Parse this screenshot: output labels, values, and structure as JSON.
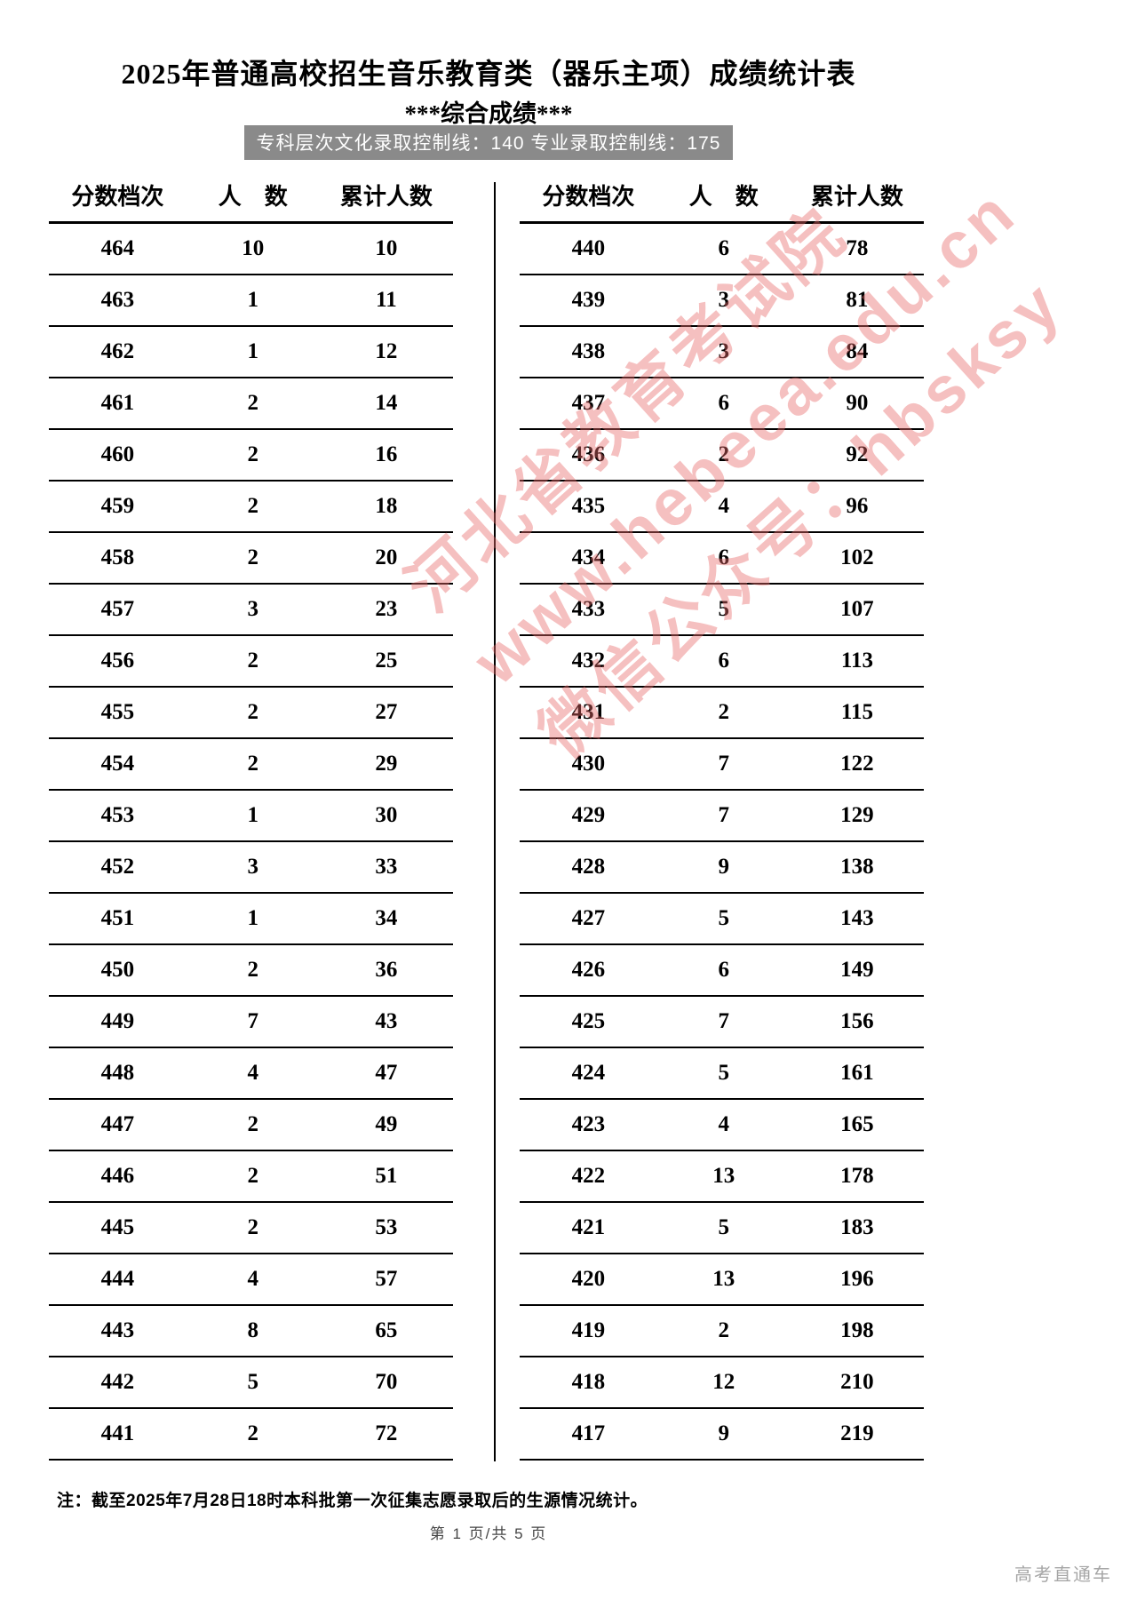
{
  "title": "2025年普通高校招生音乐教育类（器乐主项）成绩统计表",
  "subtitle": "***综合成绩***",
  "control_line": "专科层次文化录取控制线：140 专业录取控制线：175",
  "columns": [
    "分数档次",
    "人　数",
    "累计人数"
  ],
  "left_table": {
    "rows": [
      [
        464,
        10,
        10
      ],
      [
        463,
        1,
        11
      ],
      [
        462,
        1,
        12
      ],
      [
        461,
        2,
        14
      ],
      [
        460,
        2,
        16
      ],
      [
        459,
        2,
        18
      ],
      [
        458,
        2,
        20
      ],
      [
        457,
        3,
        23
      ],
      [
        456,
        2,
        25
      ],
      [
        455,
        2,
        27
      ],
      [
        454,
        2,
        29
      ],
      [
        453,
        1,
        30
      ],
      [
        452,
        3,
        33
      ],
      [
        451,
        1,
        34
      ],
      [
        450,
        2,
        36
      ],
      [
        449,
        7,
        43
      ],
      [
        448,
        4,
        47
      ],
      [
        447,
        2,
        49
      ],
      [
        446,
        2,
        51
      ],
      [
        445,
        2,
        53
      ],
      [
        444,
        4,
        57
      ],
      [
        443,
        8,
        65
      ],
      [
        442,
        5,
        70
      ],
      [
        441,
        2,
        72
      ]
    ]
  },
  "right_table": {
    "rows": [
      [
        440,
        6,
        78
      ],
      [
        439,
        3,
        81
      ],
      [
        438,
        3,
        84
      ],
      [
        437,
        6,
        90
      ],
      [
        436,
        2,
        92
      ],
      [
        435,
        4,
        96
      ],
      [
        434,
        6,
        102
      ],
      [
        433,
        5,
        107
      ],
      [
        432,
        6,
        113
      ],
      [
        431,
        2,
        115
      ],
      [
        430,
        7,
        122
      ],
      [
        429,
        7,
        129
      ],
      [
        428,
        9,
        138
      ],
      [
        427,
        5,
        143
      ],
      [
        426,
        6,
        149
      ],
      [
        425,
        7,
        156
      ],
      [
        424,
        5,
        161
      ],
      [
        423,
        4,
        165
      ],
      [
        422,
        13,
        178
      ],
      [
        421,
        5,
        183
      ],
      [
        420,
        13,
        196
      ],
      [
        419,
        2,
        198
      ],
      [
        418,
        12,
        210
      ],
      [
        417,
        9,
        219
      ]
    ]
  },
  "watermark": {
    "lines": [
      "河北省教育考试院",
      "www.hebeea.edu.cn",
      "微信公众号：hbsksy"
    ],
    "color": "#e96a6a"
  },
  "note": "注：截至2025年7月28日18时本科批第一次征集志愿录取后的生源情况统计。",
  "page_footer": "第 1 页/共 5 页",
  "brand": "高考直通车",
  "colors": {
    "band_bg": "#8a8a8a",
    "band_text": "#ffffff",
    "footer_text": "#a6a6a6"
  }
}
